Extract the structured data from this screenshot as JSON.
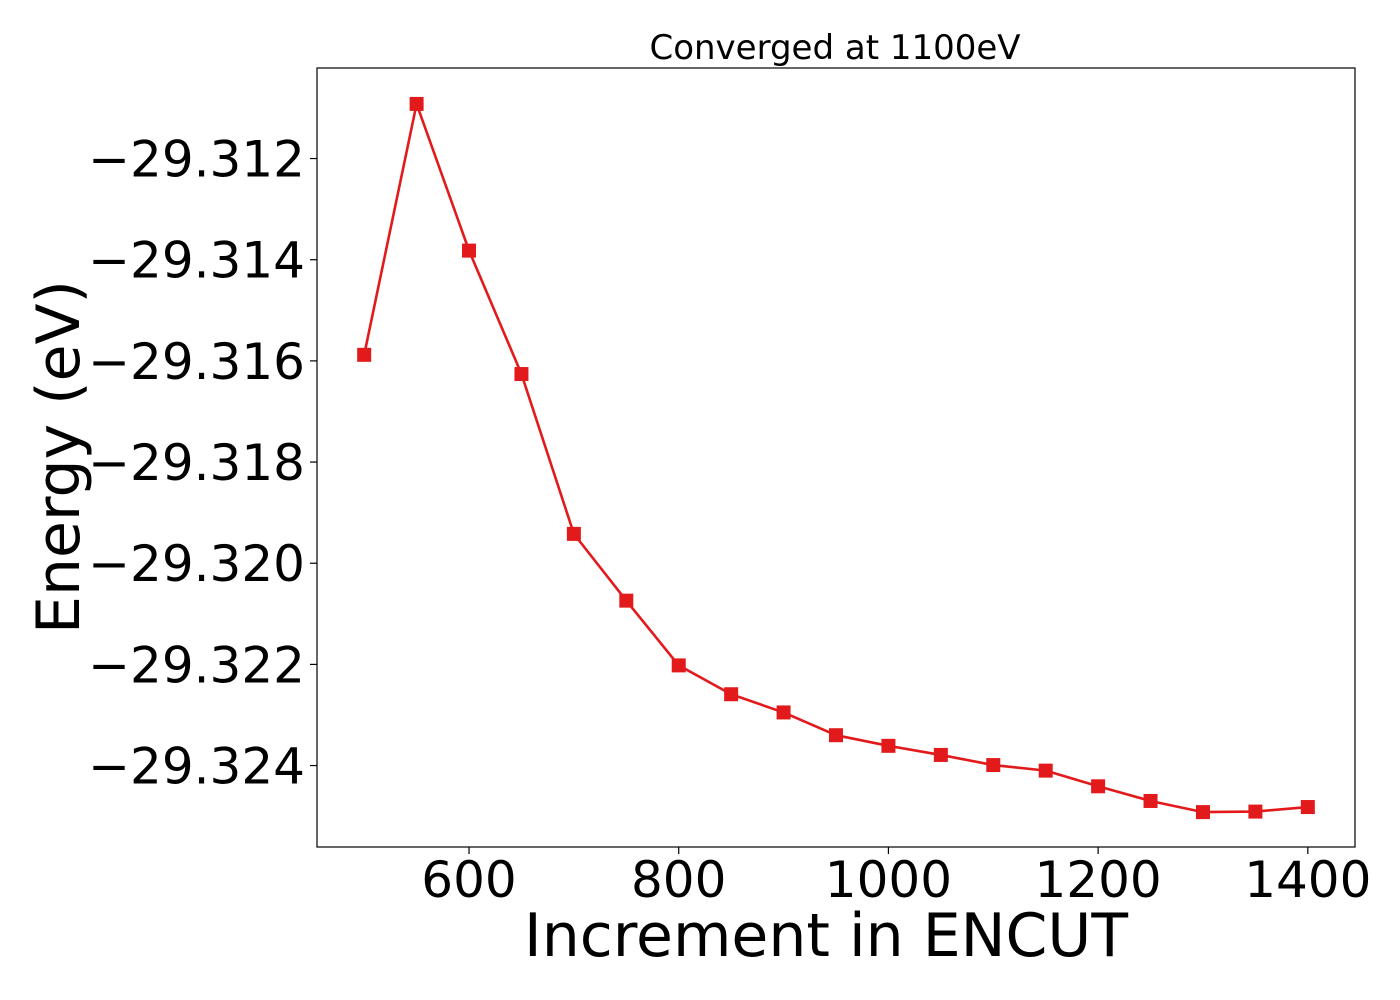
{
  "chart_data": {
    "type": "line",
    "title": "Converged at 1100eV",
    "xlabel": "Increment in ENCUT",
    "ylabel": "Energy (eV)",
    "x": [
      500,
      550,
      600,
      650,
      700,
      750,
      800,
      850,
      900,
      950,
      1000,
      1050,
      1100,
      1150,
      1200,
      1250,
      1300,
      1350,
      1400
    ],
    "series": [
      {
        "name": "",
        "values": [
          -29.31588,
          -29.31092,
          -29.31382,
          -29.31626,
          -29.31942,
          -29.32074,
          -29.32202,
          -29.32259,
          -29.32295,
          -29.3234,
          -29.32361,
          -29.32379,
          -29.32399,
          -29.3241,
          -29.32441,
          -29.3247,
          -29.32492,
          -29.32491,
          -29.32482
        ],
        "color": "#e31a1c",
        "marker": "square"
      }
    ],
    "xlim": [
      455,
      1445
    ],
    "ylim": [
      -29.32561,
      -29.31021
    ],
    "xticks": [
      600,
      800,
      1000,
      1200,
      1400
    ],
    "xtick_labels": [
      "600",
      "800",
      "1000",
      "1200",
      "1400"
    ],
    "yticks": [
      -29.312,
      -29.314,
      -29.316,
      -29.318,
      -29.32,
      -29.322,
      -29.324
    ],
    "ytick_labels": [
      "−29.312",
      "−29.314",
      "−29.316",
      "−29.318",
      "−29.320",
      "−29.322",
      "−29.324"
    ],
    "grid": false,
    "legend": "none"
  }
}
